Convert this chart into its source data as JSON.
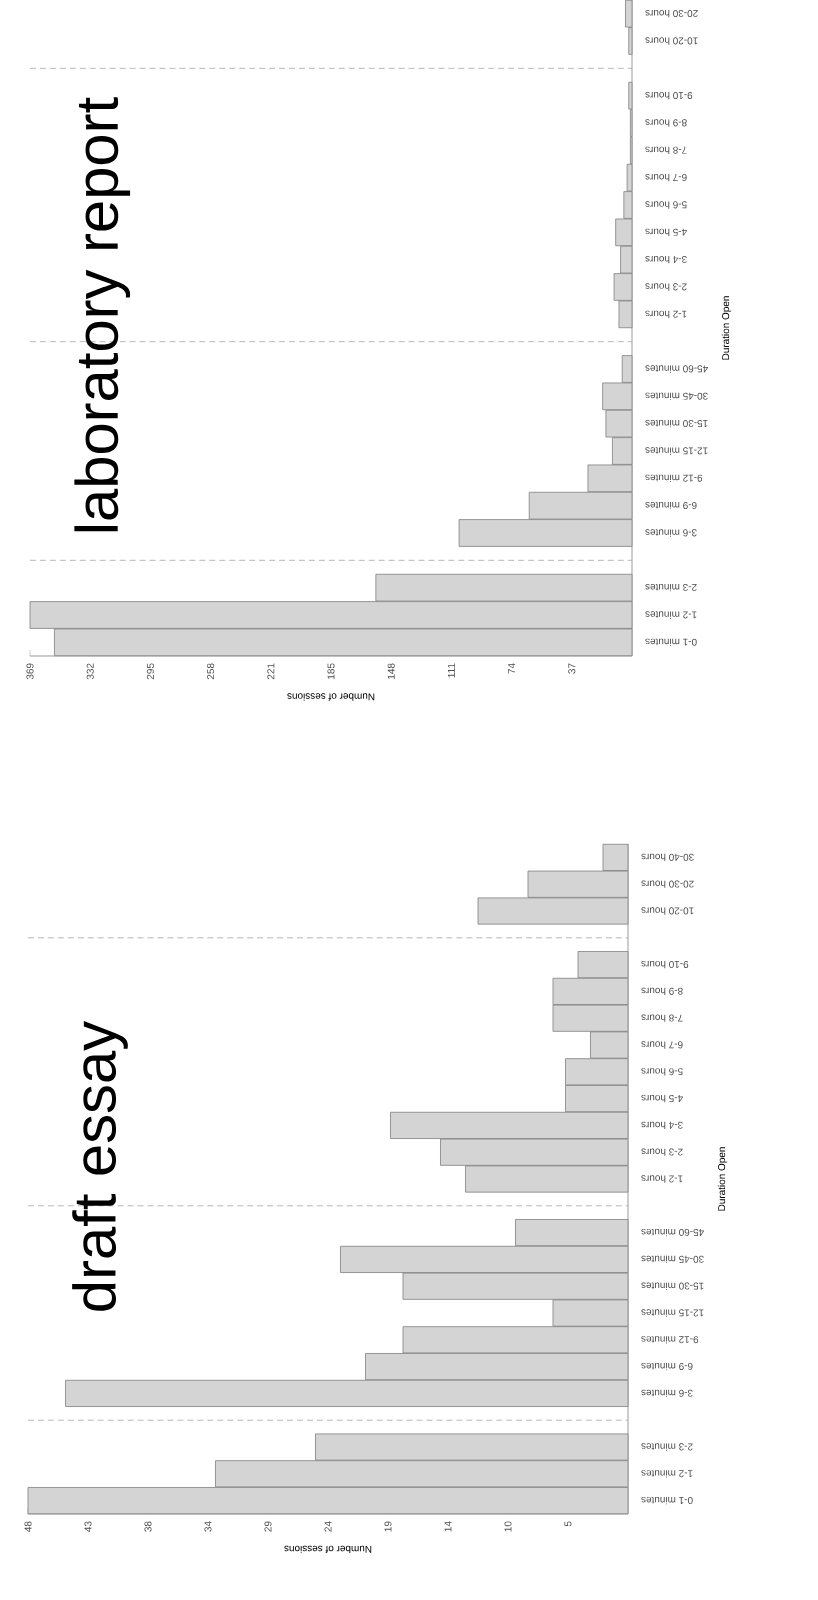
{
  "chart_data": [
    {
      "type": "bar",
      "orientation": "horizontal",
      "title": "laboratory report",
      "xlabel": "Number of sessions",
      "ylabel": "Duration Open",
      "color": "#d4d4d4",
      "categories": [
        "20-30 hours",
        "10-20 hours",
        null,
        "9-10 hours",
        "8-9 hours",
        "7-8 hours",
        "6-7 hours",
        "5-6 hours",
        "4-5 hours",
        "3-4 hours",
        "2-3 hours",
        "1-2 hours",
        null,
        "45-60 minutes",
        "30-45 minutes",
        "15-30 minutes",
        "12-15 minutes",
        "9-12 minutes",
        "6-9 minutes",
        "3-6 minutes",
        null,
        "2-3 minutes",
        "1-2 minutes",
        "0-1 minutes"
      ],
      "values": [
        4,
        2,
        null,
        2,
        1,
        1,
        3,
        5,
        10,
        7,
        11,
        8,
        null,
        6,
        18,
        16,
        12,
        27,
        63,
        106,
        null,
        157,
        369,
        354
      ],
      "xlim": [
        369,
        0
      ],
      "xticks": [
        {
          "value": 36.9,
          "label": "37"
        },
        {
          "value": 73.8,
          "label": "74"
        },
        {
          "value": 110.7,
          "label": "111"
        },
        {
          "value": 147.6,
          "label": "148"
        },
        {
          "value": 184.5,
          "label": "185"
        },
        {
          "value": 221.4,
          "label": "221"
        },
        {
          "value": 258.3,
          "label": "258"
        },
        {
          "value": 295.2,
          "label": "295"
        },
        {
          "value": 332.1,
          "label": "332"
        },
        {
          "value": 369,
          "label": "369"
        }
      ]
    },
    {
      "type": "bar",
      "orientation": "horizontal",
      "title": "draft essay",
      "xlabel": "Number of sessions",
      "ylabel": "Duration Open",
      "color": "#d4d4d4",
      "categories": [
        "30-40 hours",
        "20-30 hours",
        "10-20 hours",
        null,
        "9-10 hours",
        "8-9 hours",
        "7-8 hours",
        "6-7 hours",
        "5-6 hours",
        "4-5 hours",
        "3-4 hours",
        "2-3 hours",
        "1-2 hours",
        null,
        "45-60 minutes",
        "30-45 minutes",
        "15-30 minutes",
        "12-15 minutes",
        "9-12 minutes",
        "6-9 minutes",
        "3-6 minutes",
        null,
        "2-3 minutes",
        "1-2 minutes",
        "0-1 minutes"
      ],
      "values": [
        2,
        8,
        12,
        null,
        4,
        6,
        6,
        3,
        5,
        5,
        19,
        15,
        13,
        null,
        9,
        23,
        18,
        6,
        18,
        21,
        45,
        null,
        25,
        33,
        48
      ],
      "xlim": [
        48,
        0
      ],
      "xticks": [
        {
          "value": 4.8,
          "label": "5"
        },
        {
          "value": 9.6,
          "label": "10"
        },
        {
          "value": 14.4,
          "label": "14"
        },
        {
          "value": 19.2,
          "label": "19"
        },
        {
          "value": 24,
          "label": "24"
        },
        {
          "value": 28.8,
          "label": "29"
        },
        {
          "value": 33.6,
          "label": "34"
        },
        {
          "value": 38.4,
          "label": "38"
        },
        {
          "value": 43.2,
          "label": "43"
        },
        {
          "value": 48,
          "label": "48"
        }
      ]
    }
  ]
}
